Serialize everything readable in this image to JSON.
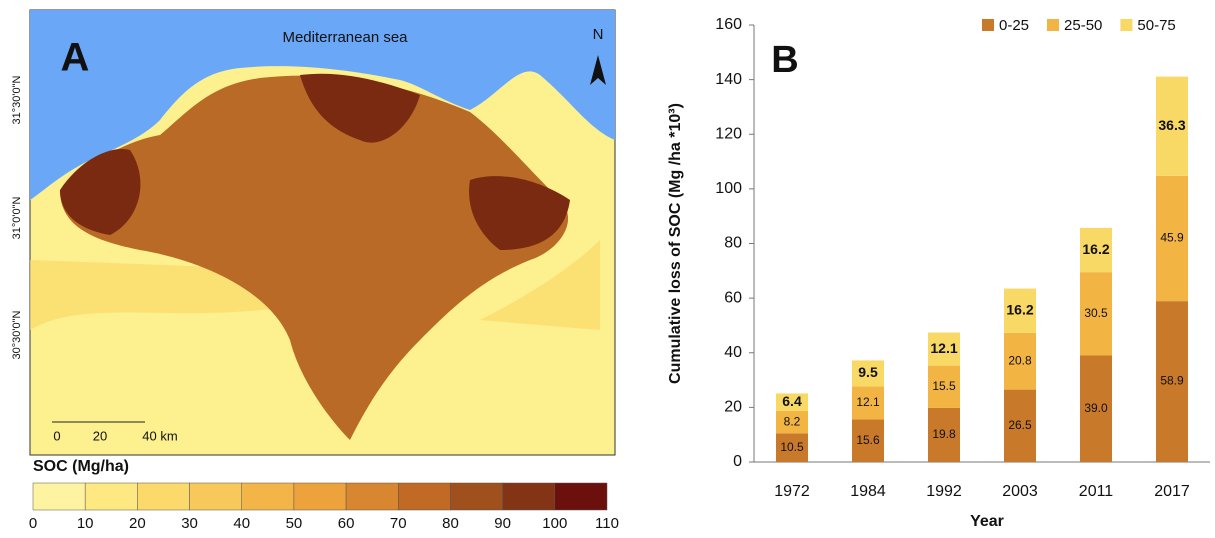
{
  "panel_a": {
    "label": "A",
    "sea_label": "Mediterranean sea",
    "north": "N",
    "latitudes": [
      "31°30'0\"N",
      "31°0'0\"N",
      "30°30'0\"N"
    ],
    "scale_bar": [
      "0",
      "20",
      "40 km"
    ],
    "colorbar": {
      "title": "SOC (Mg/ha)",
      "ticks": [
        0,
        10,
        20,
        30,
        40,
        50,
        60,
        70,
        80,
        90,
        100,
        110
      ],
      "colors": [
        "#fef3a0",
        "#fde882",
        "#fbd96a",
        "#f8c85a",
        "#f3b548",
        "#eda23c",
        "#d98630",
        "#c06a25",
        "#a0501c",
        "#823414",
        "#6b100d"
      ]
    }
  },
  "chart_data": {
    "type": "stacked_bar",
    "panel_label": "B",
    "y_label": "Cumulative loss of SOC (Mg /ha *10³)",
    "x_label": "Year",
    "categories": [
      "1972",
      "1984",
      "1992",
      "2003",
      "2011",
      "2017"
    ],
    "series": [
      {
        "name": "0-25",
        "color": "#c8792a",
        "values": [
          10.5,
          15.6,
          19.8,
          26.5,
          39.0,
          58.9
        ],
        "value_labels": [
          "10.5",
          "15.6",
          "19.8",
          "26.5",
          "39.0",
          "58.9"
        ]
      },
      {
        "name": "25-50",
        "color": "#f2b442",
        "values": [
          8.2,
          12.1,
          15.5,
          20.8,
          30.5,
          45.9
        ]
      },
      {
        "name": "50-75",
        "color": "#f9d966",
        "values": [
          6.4,
          9.5,
          12.1,
          16.2,
          16.2,
          36.3
        ]
      }
    ],
    "ylim": [
      0,
      160
    ],
    "yticks": [
      0,
      20,
      40,
      60,
      80,
      100,
      120,
      140,
      160
    ],
    "legend": "top-right"
  }
}
